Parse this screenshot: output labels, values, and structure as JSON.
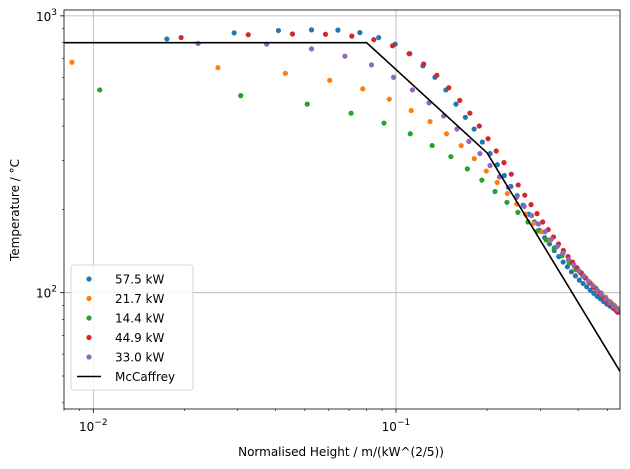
{
  "chart_data": {
    "type": "scatter",
    "xlabel": "Normalised Height / m/(kW^(2/5))",
    "ylabel": "Temperature / °C",
    "xscale": "log",
    "yscale": "log",
    "xlim": [
      0.008,
      0.55
    ],
    "ylim": [
      38,
      1050
    ],
    "xticks": [
      {
        "value": 0.01,
        "base": "10",
        "exp": "−2"
      },
      {
        "value": 0.1,
        "base": "10",
        "exp": "−1"
      }
    ],
    "yticks": [
      {
        "value": 100,
        "base": "10",
        "exp": "2"
      },
      {
        "value": 1000,
        "base": "10",
        "exp": "3"
      }
    ],
    "grid": true,
    "legend_position": "lower-left",
    "series": [
      {
        "name": "57.5 kW",
        "type": "scatter",
        "color": "#1f77b4",
        "x": [
          0.0175,
          0.0292,
          0.0409,
          0.0526,
          0.0643,
          0.076,
          0.0877,
          0.0994,
          0.1111,
          0.1228,
          0.1345,
          0.1462,
          0.1579,
          0.1696,
          0.1813,
          0.193,
          0.2047,
          0.2164,
          0.2281,
          0.2398,
          0.2515,
          0.2632,
          0.2749,
          0.2866,
          0.2983,
          0.31,
          0.3217,
          0.3334,
          0.3451,
          0.3568,
          0.3685,
          0.3802,
          0.3919,
          0.4036,
          0.4153,
          0.427,
          0.4387,
          0.4504,
          0.4621,
          0.4738,
          0.4855,
          0.4972,
          0.5089,
          0.5206,
          0.5323,
          0.544
        ],
        "y": [
          825,
          868,
          885,
          890,
          888,
          870,
          835,
          790,
          730,
          660,
          600,
          540,
          480,
          430,
          390,
          350,
          318,
          290,
          265,
          242,
          224,
          207,
          192,
          180,
          168,
          158,
          150,
          142,
          135,
          129,
          124,
          119,
          115,
          111,
          108,
          105,
          102,
          99.5,
          97,
          95,
          93,
          91,
          89.5,
          88,
          86.5,
          85
        ]
      },
      {
        "name": "21.7 kW",
        "type": "scatter",
        "color": "#ff7f0e",
        "x": [
          0.0085,
          0.0258,
          0.0431,
          0.0604,
          0.0777,
          0.095,
          0.1123,
          0.1296,
          0.1469,
          0.1642,
          0.1815,
          0.1988,
          0.2161,
          0.2334,
          0.2507,
          0.268,
          0.2853,
          0.3026,
          0.3199,
          0.3372,
          0.3545,
          0.3718,
          0.3891,
          0.4064,
          0.4237,
          0.441,
          0.4583,
          0.4756,
          0.4929,
          0.5102,
          0.5275,
          0.5448
        ],
        "y": [
          680,
          650,
          620,
          585,
          545,
          500,
          455,
          415,
          375,
          340,
          305,
          275,
          250,
          228,
          209,
          192,
          178,
          166,
          155,
          146,
          138,
          131,
          124,
          118,
          113,
          108,
          104,
          100,
          96.5,
          93,
          90,
          87.5
        ]
      },
      {
        "name": "14.4 kW",
        "type": "scatter",
        "color": "#2ca02c",
        "x": [
          0.0105,
          0.0307,
          0.0509,
          0.0711,
          0.0913,
          0.1115,
          0.1317,
          0.1519,
          0.1721,
          0.1923,
          0.2125,
          0.2327,
          0.2529,
          0.2731,
          0.2933,
          0.3135,
          0.3337,
          0.3539,
          0.3741,
          0.3943,
          0.4145,
          0.4347,
          0.4549,
          0.4751,
          0.4953,
          0.5155,
          0.5357
        ],
        "y": [
          540,
          515,
          480,
          445,
          410,
          375,
          340,
          310,
          280,
          255,
          232,
          212,
          195,
          180,
          167,
          155,
          145,
          136,
          128,
          121,
          115,
          109,
          104,
          99.5,
          95,
          91.5,
          88
        ]
      },
      {
        "name": "44.9 kW",
        "type": "scatter",
        "color": "#d62728",
        "x": [
          0.0195,
          0.0325,
          0.0455,
          0.0585,
          0.0715,
          0.0845,
          0.0975,
          0.1105,
          0.1235,
          0.1365,
          0.1495,
          0.1625,
          0.1755,
          0.1885,
          0.2015,
          0.2145,
          0.2275,
          0.2405,
          0.2535,
          0.2665,
          0.2795,
          0.2925,
          0.3055,
          0.3185,
          0.3315,
          0.3445,
          0.3575,
          0.3705,
          0.3835,
          0.3965,
          0.4095,
          0.4225,
          0.4355,
          0.4485,
          0.4615,
          0.4745,
          0.4875,
          0.5005,
          0.5135,
          0.5265,
          0.5395
        ],
        "y": [
          835,
          855,
          860,
          858,
          845,
          820,
          780,
          730,
          670,
          610,
          550,
          495,
          445,
          400,
          360,
          325,
          295,
          268,
          245,
          225,
          208,
          193,
          180,
          169,
          159,
          150,
          142,
          135,
          129,
          123,
          118,
          113,
          109,
          105,
          101.5,
          98.5,
          95.5,
          92.5,
          90,
          87.5,
          85
        ]
      },
      {
        "name": "33.0 kW",
        "type": "scatter",
        "color": "#9467bd",
        "x": [
          0.0222,
          0.0374,
          0.0526,
          0.0678,
          0.083,
          0.0982,
          0.1134,
          0.1286,
          0.1438,
          0.159,
          0.1742,
          0.1894,
          0.2046,
          0.2198,
          0.235,
          0.2502,
          0.2654,
          0.2806,
          0.2958,
          0.311,
          0.3262,
          0.3414,
          0.3566,
          0.3718,
          0.387,
          0.4022,
          0.4174,
          0.4326,
          0.4478,
          0.463,
          0.4782,
          0.4934,
          0.5086,
          0.5238,
          0.539
        ],
        "y": [
          795,
          790,
          760,
          715,
          665,
          600,
          540,
          485,
          435,
          390,
          352,
          318,
          288,
          262,
          240,
          221,
          205,
          190,
          177,
          166,
          156,
          147,
          139,
          132,
          126,
          120,
          115,
          110,
          106,
          102,
          98.5,
          95,
          92,
          89.5,
          87
        ]
      },
      {
        "name": "McCaffrey",
        "type": "line",
        "color": "#000000",
        "x": [
          0.008,
          0.08,
          0.2,
          0.55
        ],
        "y": [
          800,
          800,
          320,
          52
        ]
      }
    ]
  }
}
